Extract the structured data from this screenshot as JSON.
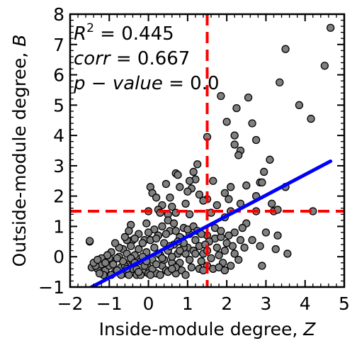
{
  "chart_data": {
    "type": "scatter",
    "xlabel_text": "Inside-module degree, ",
    "xlabel_var": "Z",
    "ylabel_text": "Outside-module degree, ",
    "ylabel_var": "B",
    "xlim": [
      -2,
      5
    ],
    "ylim": [
      -1,
      8
    ],
    "xticks": [
      -2,
      -1,
      0,
      1,
      2,
      3,
      4,
      5
    ],
    "xtick_labels": [
      "−2",
      "−1",
      "0",
      "1",
      "2",
      "3",
      "4",
      "5"
    ],
    "yticks": [
      -1,
      0,
      1,
      2,
      3,
      4,
      5,
      6,
      7,
      8
    ],
    "ytick_labels": [
      "−1",
      "0",
      "1",
      "2",
      "3",
      "4",
      "5",
      "6",
      "7",
      "8"
    ],
    "grid": false,
    "annotations": [
      {
        "lead": "R",
        "sup": "2",
        "rest": " = 0.445"
      },
      {
        "lead": "corr",
        "sup": "",
        "rest": " = 0.667"
      },
      {
        "lead": "p − value",
        "sup": "",
        "rest": " = 0.0"
      }
    ],
    "fit_line": {
      "x": [
        -1.45,
        4.65
      ],
      "y": [
        -1.0,
        3.15
      ],
      "color": "#0000ff"
    },
    "thresholds": {
      "x": 1.5,
      "y": 1.5,
      "color": "#ff0000"
    },
    "marker_color": "#808080",
    "points": [
      [
        -1.5,
        0.5
      ],
      [
        -1.5,
        0.52
      ],
      [
        4.65,
        7.55
      ],
      [
        3.5,
        6.85
      ],
      [
        4.5,
        6.3
      ],
      [
        3.35,
        5.75
      ],
      [
        1.85,
        5.3
      ],
      [
        2.55,
        5.25
      ],
      [
        3.85,
        5.0
      ],
      [
        2.25,
        4.9
      ],
      [
        4.15,
        4.55
      ],
      [
        2.0,
        4.45
      ],
      [
        2.65,
        4.4
      ],
      [
        2.2,
        4.0
      ],
      [
        2.35,
        3.5
      ],
      [
        3.1,
        3.2
      ],
      [
        1.5,
        3.95
      ],
      [
        2.2,
        3.7
      ],
      [
        2.3,
        3.35
      ],
      [
        2.75,
        3.85
      ],
      [
        1.25,
        3.05
      ],
      [
        1.15,
        2.8
      ],
      [
        2.95,
        2.8
      ],
      [
        0.7,
        2.75
      ],
      [
        0.75,
        2.7
      ],
      [
        1.2,
        2.55
      ],
      [
        0.05,
        2.3
      ],
      [
        0.45,
        2.4
      ],
      [
        1.05,
        2.5
      ],
      [
        1.65,
        2.5
      ],
      [
        2.1,
        2.3
      ],
      [
        2.5,
        2.35
      ],
      [
        2.85,
        2.45
      ],
      [
        2.9,
        2.45
      ],
      [
        0.8,
        2.3
      ],
      [
        1.1,
        2.25
      ],
      [
        1.0,
        2.15
      ],
      [
        0.1,
        2.1
      ],
      [
        0.2,
        1.95
      ],
      [
        0.55,
        1.95
      ],
      [
        1.3,
        2.05
      ],
      [
        1.95,
        2.1
      ],
      [
        1.5,
        1.9
      ],
      [
        2.05,
        1.9
      ],
      [
        2.75,
        2.0
      ],
      [
        3.5,
        2.3
      ],
      [
        1.4,
        1.85
      ],
      [
        0.95,
        1.75
      ],
      [
        0.6,
        1.65
      ],
      [
        0.35,
        1.7
      ],
      [
        0.25,
        1.55
      ],
      [
        1.75,
        1.7
      ],
      [
        2.35,
        1.75
      ],
      [
        3.15,
        1.75
      ],
      [
        0.0,
        1.5
      ],
      [
        0.3,
        1.45
      ],
      [
        0.5,
        1.4
      ],
      [
        0.7,
        1.45
      ],
      [
        1.05,
        1.4
      ],
      [
        1.6,
        1.45
      ],
      [
        2.1,
        1.5
      ],
      [
        2.75,
        1.5
      ],
      [
        3.2,
        1.5
      ],
      [
        3.3,
        1.55
      ],
      [
        4.2,
        1.5
      ],
      [
        -0.45,
        1.05
      ],
      [
        -0.5,
        0.85
      ],
      [
        -0.05,
        1.1
      ],
      [
        -0.4,
        0.55
      ],
      [
        -0.1,
        0.55
      ],
      [
        0.5,
        1.2
      ],
      [
        1.95,
        1.3
      ],
      [
        2.5,
        1.1
      ],
      [
        2.4,
        0.95
      ],
      [
        2.2,
        0.8
      ],
      [
        2.05,
        0.7
      ],
      [
        2.35,
        0.55
      ],
      [
        2.65,
        0.55
      ],
      [
        3.0,
        0.8
      ],
      [
        3.3,
        0.7
      ],
      [
        2.85,
        0.35
      ],
      [
        3.25,
        0.25
      ],
      [
        2.9,
        -0.3
      ],
      [
        3.55,
        0.1
      ],
      [
        1.5,
        0.7
      ],
      [
        1.7,
        0.6
      ],
      [
        1.85,
        0.65
      ],
      [
        1.55,
        0.5
      ],
      [
        1.75,
        0.3
      ],
      [
        1.95,
        0.2
      ],
      [
        1.8,
        0.05
      ],
      [
        1.6,
        -0.05
      ],
      [
        1.9,
        -0.2
      ],
      [
        2.2,
        0.1
      ],
      [
        1.5,
        -0.3
      ],
      [
        1.4,
        0.1
      ],
      [
        1.3,
        0.35
      ],
      [
        1.2,
        0.55
      ],
      [
        1.05,
        0.75
      ],
      [
        0.9,
        0.95
      ],
      [
        1.0,
        0.3
      ],
      [
        0.85,
        0.6
      ],
      [
        0.95,
        0.1
      ],
      [
        0.8,
        -0.2
      ],
      [
        1.1,
        -0.35
      ],
      [
        1.3,
        -0.4
      ],
      [
        -1.45,
        -0.35
      ],
      [
        -1.3,
        -0.4
      ],
      [
        -1.2,
        -0.25
      ],
      [
        -1.1,
        -0.45
      ],
      [
        -1.0,
        -0.3
      ],
      [
        -0.9,
        -0.15
      ],
      [
        -0.85,
        -0.5
      ],
      [
        -1.15,
        -0.6
      ],
      [
        -1.25,
        -0.55
      ],
      [
        -1.35,
        -0.3
      ],
      [
        -1.4,
        -0.2
      ],
      [
        -1.0,
        -0.05
      ],
      [
        -0.75,
        0.0
      ],
      [
        -0.7,
        -0.35
      ],
      [
        -0.65,
        0.25
      ],
      [
        -0.6,
        -0.55
      ],
      [
        -0.55,
        0.1
      ],
      [
        -0.5,
        -0.25
      ],
      [
        -0.45,
        0.35
      ],
      [
        -0.4,
        -0.4
      ],
      [
        -0.35,
        0.05
      ],
      [
        -0.3,
        -0.6
      ],
      [
        -0.25,
        0.25
      ],
      [
        -0.2,
        -0.15
      ],
      [
        -0.15,
        0.45
      ],
      [
        -0.1,
        -0.5
      ],
      [
        -0.05,
        0.15
      ],
      [
        0.0,
        -0.35
      ],
      [
        0.05,
        0.55
      ],
      [
        0.1,
        -0.1
      ],
      [
        0.15,
        0.3
      ],
      [
        0.2,
        -0.55
      ],
      [
        0.25,
        0.7
      ],
      [
        0.3,
        0.05
      ],
      [
        0.35,
        -0.3
      ],
      [
        0.4,
        0.45
      ],
      [
        0.45,
        -0.45
      ],
      [
        0.5,
        0.2
      ],
      [
        0.55,
        0.85
      ],
      [
        0.6,
        -0.2
      ],
      [
        0.65,
        0.4
      ],
      [
        0.7,
        -0.55
      ],
      [
        0.75,
        0.1
      ],
      [
        0.8,
        0.65
      ],
      [
        0.85,
        -0.45
      ],
      [
        0.9,
        0.3
      ],
      [
        0.95,
        -0.6
      ],
      [
        1.0,
        0.9
      ],
      [
        -0.95,
        -0.6
      ],
      [
        -0.8,
        -0.45
      ],
      [
        -0.7,
        -0.6
      ],
      [
        -0.6,
        -0.3
      ],
      [
        -0.5,
        -0.6
      ],
      [
        -0.4,
        -0.15
      ],
      [
        -0.3,
        -0.4
      ],
      [
        -0.2,
        -0.6
      ],
      [
        -0.1,
        -0.3
      ],
      [
        0.0,
        -0.55
      ],
      [
        0.1,
        -0.4
      ],
      [
        0.2,
        -0.25
      ],
      [
        0.3,
        -0.6
      ],
      [
        0.4,
        -0.1
      ],
      [
        0.5,
        -0.5
      ],
      [
        0.6,
        0.0
      ],
      [
        0.7,
        -0.35
      ],
      [
        0.8,
        0.2
      ],
      [
        -0.55,
        0.55
      ],
      [
        -0.25,
        0.75
      ],
      [
        0.15,
        0.9
      ],
      [
        0.35,
        1.0
      ],
      [
        0.65,
        1.1
      ],
      [
        0.2,
        0.6
      ],
      [
        -0.75,
        0.3
      ],
      [
        -0.95,
        0.15
      ],
      [
        -1.05,
        0.05
      ],
      [
        -0.85,
        0.45
      ],
      [
        -0.6,
        0.65
      ],
      [
        -0.35,
        0.6
      ],
      [
        0.0,
        0.8
      ],
      [
        0.45,
        0.75
      ],
      [
        0.7,
        0.85
      ],
      [
        1.15,
        1.0
      ],
      [
        1.25,
        0.85
      ],
      [
        1.35,
        0.75
      ],
      [
        -1.2,
        -0.05
      ],
      [
        -1.3,
        -0.1
      ],
      [
        -0.9,
        -0.25
      ],
      [
        -0.65,
        -0.15
      ],
      [
        -0.45,
        -0.05
      ],
      [
        -0.15,
        0.0
      ],
      [
        0.25,
        0.1
      ],
      [
        0.55,
        0.35
      ],
      [
        0.9,
        0.45
      ],
      [
        1.15,
        0.2
      ],
      [
        1.35,
        -0.15
      ],
      [
        1.45,
        0.4
      ],
      [
        -1.1,
        -0.2
      ],
      [
        -0.8,
        -0.05
      ],
      [
        -0.55,
        -0.4
      ],
      [
        -0.35,
        -0.2
      ],
      [
        -0.05,
        -0.15
      ],
      [
        0.35,
        -0.05
      ],
      [
        0.6,
        -0.4
      ],
      [
        0.75,
        0.5
      ],
      [
        1.05,
        -0.1
      ],
      [
        1.2,
        0.1
      ],
      [
        1.4,
        -0.45
      ],
      [
        1.5,
        0.2
      ],
      [
        1.65,
        -0.4
      ],
      [
        1.8,
        -0.35
      ],
      [
        1.95,
        -0.45
      ],
      [
        2.1,
        -0.3
      ],
      [
        1.7,
        0.95
      ],
      [
        1.85,
        0.85
      ],
      [
        2.0,
        0.45
      ],
      [
        2.15,
        0.35
      ],
      [
        2.3,
        -0.1
      ],
      [
        2.45,
        0.3
      ],
      [
        -0.25,
        -0.5
      ],
      [
        0.05,
        -0.6
      ]
    ]
  }
}
